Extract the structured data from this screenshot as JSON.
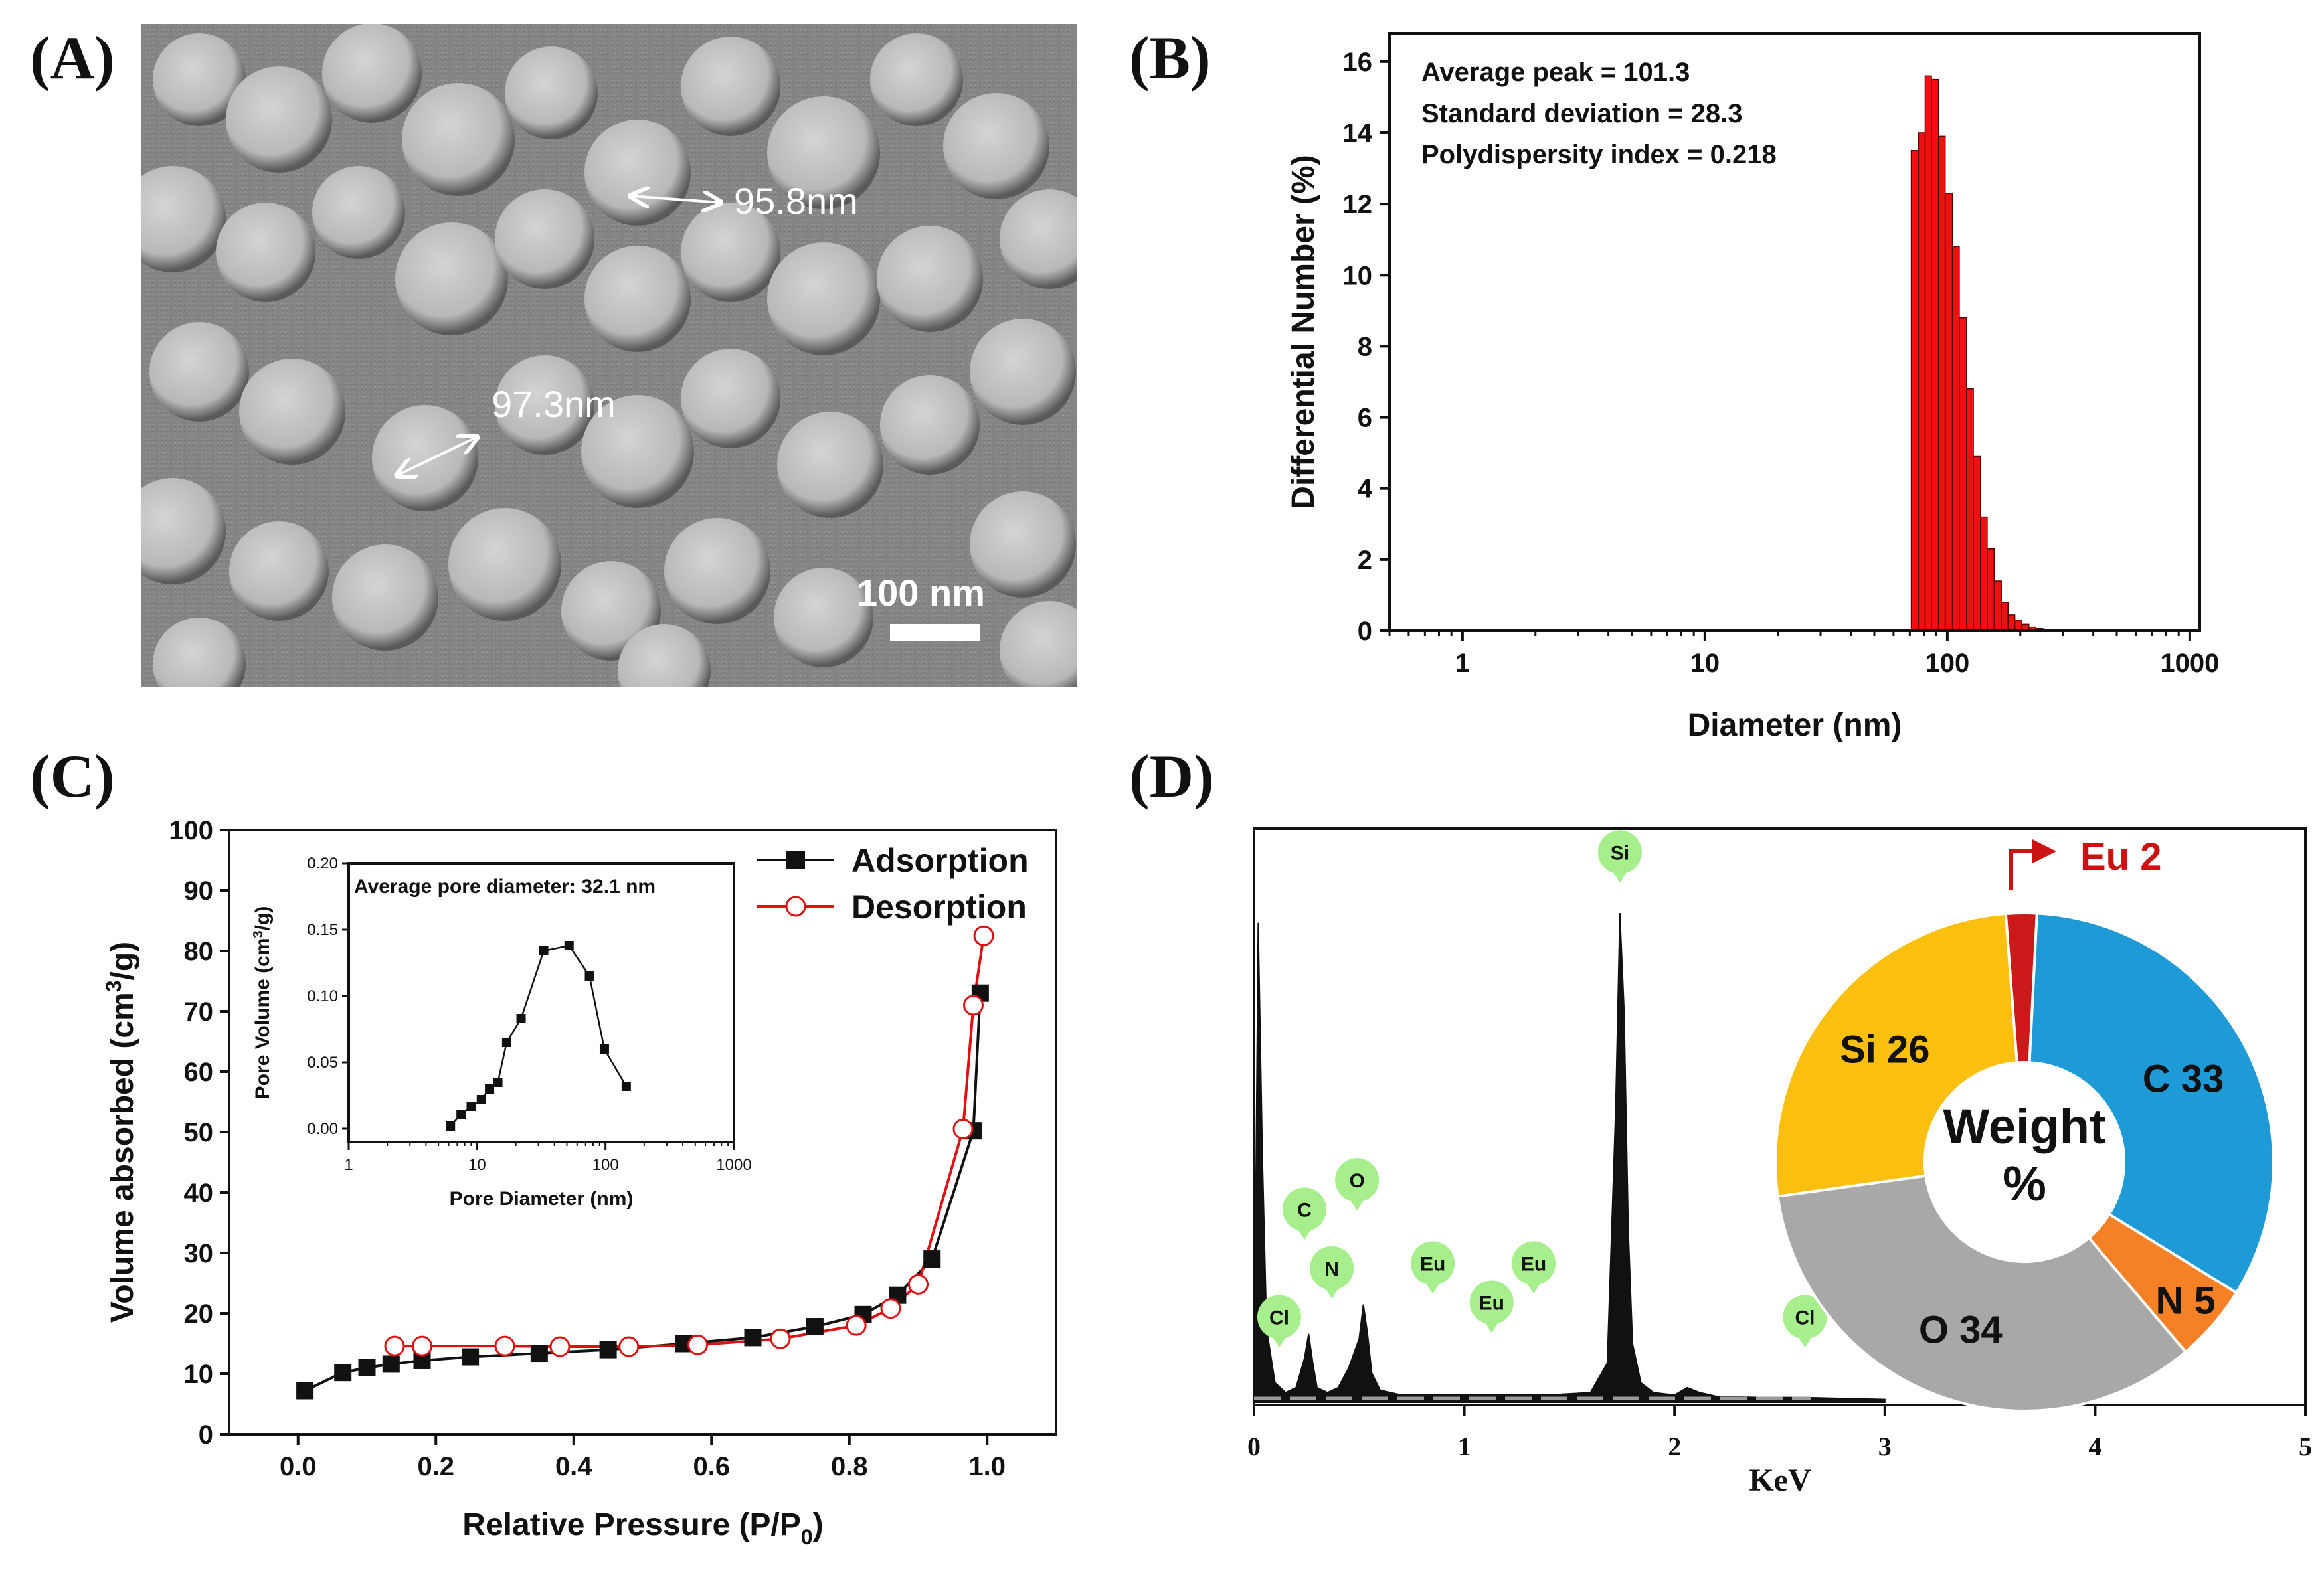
{
  "panels": {
    "a": "(A)",
    "b": "(B)",
    "c": "(C)",
    "d": "(D)"
  },
  "sem": {
    "measure1": "95.8nm",
    "measure2": "97.3nm",
    "scale_bar": "100 nm"
  },
  "colors": {
    "histogram": "#ee1111",
    "adsorption": "#111111",
    "desorption": "#dd1111",
    "marker_bg": "#a6ef8c"
  },
  "chart_data": [
    {
      "id": "B",
      "type": "bar",
      "title": "",
      "xlabel": "Diameter (nm)",
      "ylabel": "Differential Number (%)",
      "xscale": "log",
      "xlim": [
        0.5,
        1100
      ],
      "ylim": [
        0,
        16.8
      ],
      "xticks": [
        1,
        10,
        100,
        1000
      ],
      "xtick_labels": [
        "1",
        "10",
        "100",
        "1000"
      ],
      "yticks": [
        0,
        2,
        4,
        6,
        8,
        10,
        12,
        14,
        16
      ],
      "ytick_labels": [
        "0",
        "2",
        "4",
        "6",
        "8",
        "10",
        "12",
        "14",
        "16"
      ],
      "annotations": [
        "Average peak = 101.3",
        "Standard deviation = 28.3",
        "Polydispersity index = 0.218"
      ],
      "bins": [
        {
          "from": 71,
          "to": 76,
          "value": 13.5
        },
        {
          "from": 76,
          "to": 81,
          "value": 14.0
        },
        {
          "from": 81,
          "to": 86,
          "value": 15.6
        },
        {
          "from": 86,
          "to": 92,
          "value": 15.5
        },
        {
          "from": 92,
          "to": 98,
          "value": 13.9
        },
        {
          "from": 98,
          "to": 105,
          "value": 12.3
        },
        {
          "from": 105,
          "to": 112,
          "value": 10.8
        },
        {
          "from": 112,
          "to": 120,
          "value": 8.8
        },
        {
          "from": 120,
          "to": 128,
          "value": 6.8
        },
        {
          "from": 128,
          "to": 137,
          "value": 4.9
        },
        {
          "from": 137,
          "to": 146,
          "value": 3.2
        },
        {
          "from": 146,
          "to": 156,
          "value": 2.3
        },
        {
          "from": 156,
          "to": 167,
          "value": 1.4
        },
        {
          "from": 167,
          "to": 178,
          "value": 0.8
        },
        {
          "from": 178,
          "to": 190,
          "value": 0.45
        },
        {
          "from": 190,
          "to": 203,
          "value": 0.3
        },
        {
          "from": 203,
          "to": 217,
          "value": 0.18
        },
        {
          "from": 217,
          "to": 232,
          "value": 0.1
        },
        {
          "from": 232,
          "to": 248,
          "value": 0.06
        },
        {
          "from": 248,
          "to": 265,
          "value": 0.03
        }
      ]
    },
    {
      "id": "C",
      "type": "line",
      "title": "",
      "xlabel": "Relative Pressure (P/P",
      "xlabel_sub": "0",
      "xlabel_end": ")",
      "ylabel_pre": "Volume absorbed (cm",
      "ylabel_sup": "3",
      "ylabel_post": "/g)",
      "xlim": [
        -0.1,
        1.1
      ],
      "ylim": [
        0,
        100
      ],
      "xticks": [
        0.0,
        0.2,
        0.4,
        0.6,
        0.8,
        1.0
      ],
      "xtick_labels": [
        "0.0",
        "0.2",
        "0.4",
        "0.6",
        "0.8",
        "1.0"
      ],
      "yticks": [
        0,
        10,
        20,
        30,
        40,
        50,
        60,
        70,
        80,
        90,
        100
      ],
      "ytick_labels": [
        "0",
        "10",
        "20",
        "30",
        "40",
        "50",
        "60",
        "70",
        "80",
        "90",
        "100"
      ],
      "legend": "top-right",
      "series": [
        {
          "name": "Adsorption",
          "marker": "square",
          "x": [
            0.01,
            0.065,
            0.1,
            0.135,
            0.18,
            0.25,
            0.35,
            0.45,
            0.56,
            0.66,
            0.75,
            0.82,
            0.87,
            0.92,
            0.98,
            0.99
          ],
          "y": [
            7.2,
            10.2,
            11.0,
            11.6,
            12.2,
            12.8,
            13.4,
            14.0,
            15.0,
            16.0,
            17.8,
            19.8,
            23.0,
            29.0,
            50.2,
            73.0
          ]
        },
        {
          "name": "Desorption",
          "marker": "circle",
          "x": [
            0.995,
            0.98,
            0.965,
            0.9,
            0.86,
            0.81,
            0.7,
            0.58,
            0.48,
            0.38,
            0.3,
            0.18,
            0.14
          ],
          "y": [
            82.5,
            71.0,
            50.5,
            24.8,
            20.8,
            18.0,
            15.8,
            14.8,
            14.5,
            14.5,
            14.6,
            14.6,
            14.6
          ]
        }
      ]
    },
    {
      "id": "C-inset",
      "type": "line",
      "title": "Average pore diameter: 32.1 nm",
      "xlabel": "Pore Diameter (nm)",
      "ylabel_pre": "Pore Volume (cm",
      "ylabel_sup": "3",
      "ylabel_post": "/g)",
      "xscale": "log",
      "xlim": [
        1,
        1000
      ],
      "ylim": [
        -0.01,
        0.2
      ],
      "xticks": [
        1,
        10,
        100,
        1000
      ],
      "xtick_labels": [
        "1",
        "10",
        "100",
        "1000"
      ],
      "yticks": [
        0.0,
        0.05,
        0.1,
        0.15,
        0.2
      ],
      "ytick_labels": [
        "0.00",
        "0.05",
        "0.10",
        "0.15",
        "0.20"
      ],
      "series": [
        {
          "name": "Pore volume",
          "x": [
            6.2,
            7.5,
            9.0,
            10.8,
            12.5,
            14.5,
            17.0,
            22.0,
            33.0,
            52.0,
            75.0,
            98.0,
            145.0
          ],
          "y": [
            0.002,
            0.011,
            0.017,
            0.022,
            0.03,
            0.035,
            0.065,
            0.083,
            0.134,
            0.138,
            0.115,
            0.06,
            0.032
          ]
        }
      ]
    },
    {
      "id": "D-edx",
      "type": "line",
      "title": "",
      "xlabel": "KeV",
      "ylabel": "",
      "xlim": [
        0,
        5
      ],
      "ylim": [
        0,
        1
      ],
      "xticks": [
        0,
        1,
        2,
        3,
        4,
        5
      ],
      "xtick_labels": [
        "0",
        "1",
        "2",
        "3",
        "4",
        "5"
      ],
      "series": [
        {
          "name": "EDX spectrum",
          "x": [
            0.0,
            0.02,
            0.04,
            0.06,
            0.1,
            0.15,
            0.2,
            0.24,
            0.26,
            0.28,
            0.3,
            0.35,
            0.4,
            0.45,
            0.5,
            0.52,
            0.54,
            0.56,
            0.6,
            0.7,
            0.8,
            1.0,
            1.2,
            1.4,
            1.6,
            1.68,
            1.72,
            1.74,
            1.76,
            1.78,
            1.8,
            1.84,
            1.9,
            2.0,
            2.06,
            2.12,
            2.2,
            2.4,
            2.6,
            2.8,
            3.0
          ],
          "y": [
            0.0,
            0.98,
            0.5,
            0.15,
            0.04,
            0.02,
            0.03,
            0.09,
            0.14,
            0.08,
            0.03,
            0.02,
            0.03,
            0.07,
            0.13,
            0.2,
            0.14,
            0.06,
            0.025,
            0.015,
            0.015,
            0.015,
            0.015,
            0.015,
            0.02,
            0.08,
            0.6,
            1.0,
            0.8,
            0.35,
            0.12,
            0.04,
            0.02,
            0.015,
            0.03,
            0.02,
            0.012,
            0.01,
            0.01,
            0.008,
            0.006
          ]
        }
      ],
      "element_markers": [
        {
          "label": "Cl",
          "kev": 0.12,
          "level": 0.12
        },
        {
          "label": "C",
          "kev": 0.24,
          "level": 0.34
        },
        {
          "label": "O",
          "kev": 0.49,
          "level": 0.4
        },
        {
          "label": "N",
          "kev": 0.37,
          "level": 0.22
        },
        {
          "label": "Eu",
          "kev": 0.85,
          "level": 0.23
        },
        {
          "label": "Eu",
          "kev": 1.13,
          "level": 0.15
        },
        {
          "label": "Eu",
          "kev": 1.33,
          "level": 0.23
        },
        {
          "label": "Si",
          "kev": 1.74,
          "level": 1.07
        },
        {
          "label": "Cl",
          "kev": 2.62,
          "level": 0.12
        }
      ]
    },
    {
      "id": "D-pie",
      "type": "pie",
      "title": "Weight %",
      "center_line1": "Weight",
      "center_line2": "%",
      "slices": [
        {
          "label": "Eu",
          "value": 2,
          "text": "Eu 2",
          "color": "#cc1a1a"
        },
        {
          "label": "C",
          "value": 33,
          "text": "C 33",
          "color": "#1e9ad6"
        },
        {
          "label": "N",
          "value": 5,
          "text": "N 5",
          "color": "#f58025"
        },
        {
          "label": "O",
          "value": 34,
          "text": "O 34",
          "color": "#a8a8a8"
        },
        {
          "label": "Si",
          "value": 26,
          "text": "Si 26",
          "color": "#fbbf0f"
        }
      ]
    }
  ]
}
